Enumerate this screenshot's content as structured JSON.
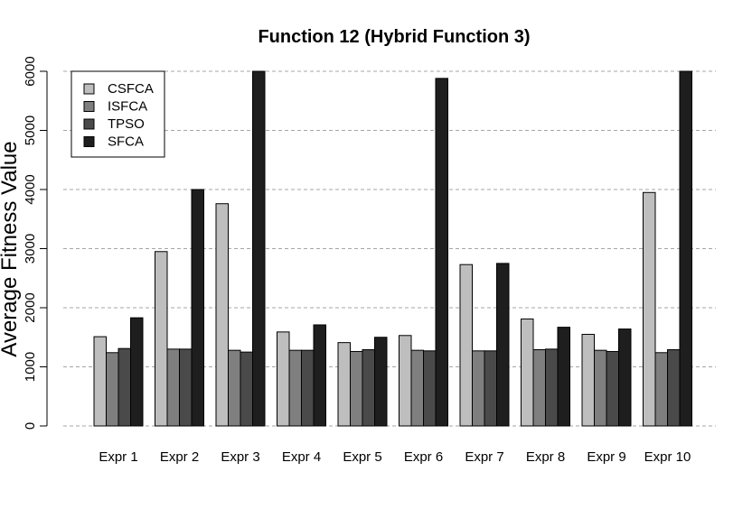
{
  "chart_data": {
    "type": "bar",
    "title": "Function 12 (Hybrid Function 3)",
    "xlabel": "",
    "ylabel": "Average Fitness Value",
    "ylim": [
      0,
      6000
    ],
    "yticks": [
      0,
      1000,
      2000,
      3000,
      4000,
      5000,
      6000
    ],
    "grid": true,
    "legend_position": "top-left",
    "categories": [
      "Expr 1",
      "Expr 2",
      "Expr 3",
      "Expr 4",
      "Expr 5",
      "Expr 6",
      "Expr 7",
      "Expr 8",
      "Expr 9",
      "Expr 10"
    ],
    "series": [
      {
        "name": "CSFCA",
        "color": "#bebebe",
        "values": [
          1510,
          2950,
          3760,
          1590,
          1410,
          1530,
          2730,
          1810,
          1550,
          3950
        ]
      },
      {
        "name": "ISFCA",
        "color": "#7f7f7f",
        "values": [
          1240,
          1300,
          1280,
          1280,
          1260,
          1280,
          1270,
          1290,
          1280,
          1240
        ]
      },
      {
        "name": "TPSO",
        "color": "#4a4a4a",
        "values": [
          1310,
          1300,
          1250,
          1280,
          1290,
          1270,
          1270,
          1300,
          1260,
          1290
        ]
      },
      {
        "name": "SFCA",
        "color": "#1e1e1e",
        "values": [
          1830,
          4000,
          6000,
          1710,
          1500,
          5880,
          2750,
          1670,
          1640,
          6000
        ]
      }
    ]
  }
}
